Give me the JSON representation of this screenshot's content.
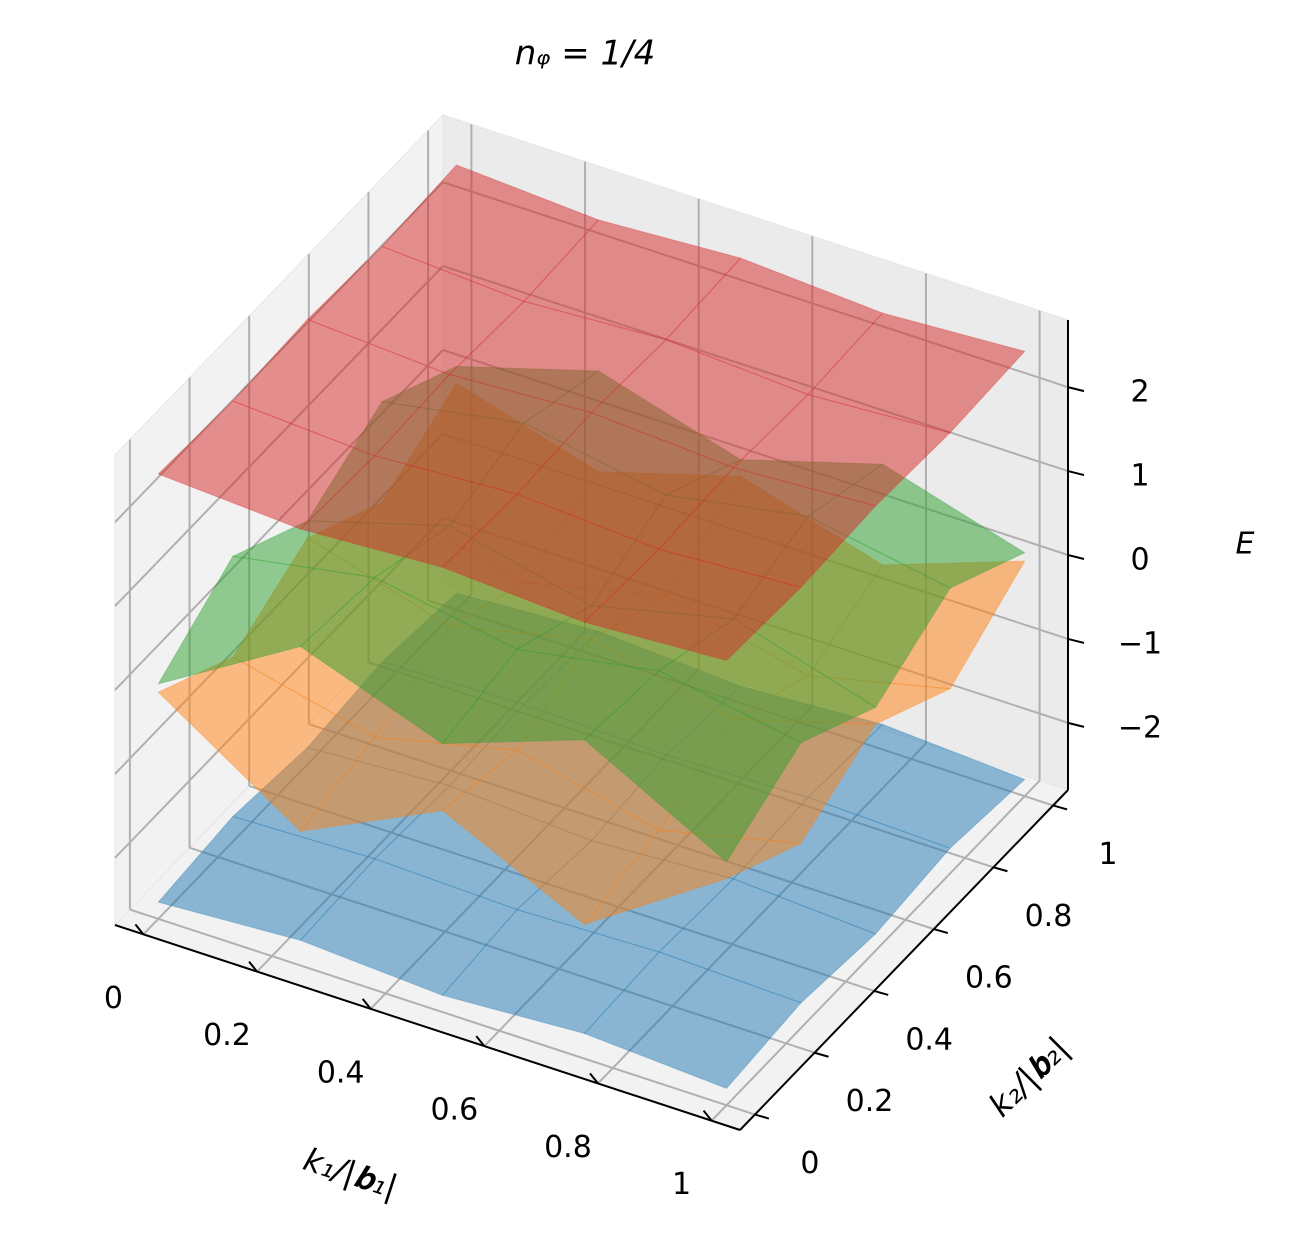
{
  "chart_data": {
    "type": "surface3d",
    "title": "nᵩ = 1/4",
    "xlabel": "k₁/|𝐛₁|",
    "ylabel": "k₂/|𝐛₂|",
    "zlabel": "E",
    "x": [
      0,
      0.25,
      0.5,
      0.75,
      1
    ],
    "y": [
      0,
      0.25,
      0.5,
      0.75,
      1
    ],
    "xlim": [
      -0.05,
      1.05
    ],
    "ylim": [
      -0.05,
      1.05
    ],
    "zlim": [
      -2.8,
      2.8
    ],
    "xticks": [
      0,
      0.2,
      0.4,
      0.6,
      0.8,
      1
    ],
    "yticks": [
      0,
      0.2,
      0.4,
      0.6,
      0.8,
      1
    ],
    "zticks": [
      {
        "value": -2,
        "label": "−2"
      },
      {
        "value": -1,
        "label": "−1"
      },
      0,
      1,
      2
    ],
    "grid": true,
    "series": [
      {
        "color": "#1f77b4",
        "values": [
          [
            -2.6,
            -2.5,
            -2.6,
            -2.5,
            -2.6
          ],
          [
            -2.5,
            -2.45,
            -2.5,
            -2.45,
            -2.5
          ],
          [
            -2.6,
            -2.5,
            -2.6,
            -2.5,
            -2.6
          ],
          [
            -2.5,
            -2.45,
            -2.5,
            -2.45,
            -2.5
          ],
          [
            -2.6,
            -2.5,
            -2.6,
            -2.5,
            -2.6
          ]
        ]
      },
      {
        "color": "#ff7f0e",
        "values": [
          [
            -0.1,
            -1.2,
            -0.4,
            -1.2,
            -0.1
          ],
          [
            -0.6,
            -1.0,
            -0.6,
            -1.0,
            -0.6
          ],
          [
            -0.1,
            -0.6,
            -0.2,
            -0.6,
            -0.1
          ],
          [
            -0.6,
            -1.0,
            -0.6,
            -1.0,
            -0.6
          ],
          [
            -0.1,
            -0.6,
            -0.1,
            -0.6,
            0.0
          ]
        ]
      },
      {
        "color": "#2ca02c",
        "values": [
          [
            0.0,
            1.0,
            0.4,
            1.0,
            0.1
          ],
          [
            0.6,
            0.9,
            0.6,
            0.9,
            0.6
          ],
          [
            0.1,
            0.6,
            0.2,
            0.6,
            0.1
          ],
          [
            0.6,
            0.9,
            0.6,
            0.9,
            0.6
          ],
          [
            0.1,
            0.6,
            0.1,
            0.6,
            0.1
          ]
        ]
      },
      {
        "color": "#d62728",
        "values": [
          [
            2.5,
            2.4,
            2.5,
            2.4,
            2.5
          ],
          [
            2.45,
            2.35,
            2.45,
            2.35,
            2.45
          ],
          [
            2.5,
            2.4,
            2.5,
            2.4,
            2.5
          ],
          [
            2.45,
            2.35,
            2.45,
            2.35,
            2.45
          ],
          [
            2.5,
            2.4,
            2.5,
            2.4,
            2.5
          ]
        ]
      }
    ]
  }
}
